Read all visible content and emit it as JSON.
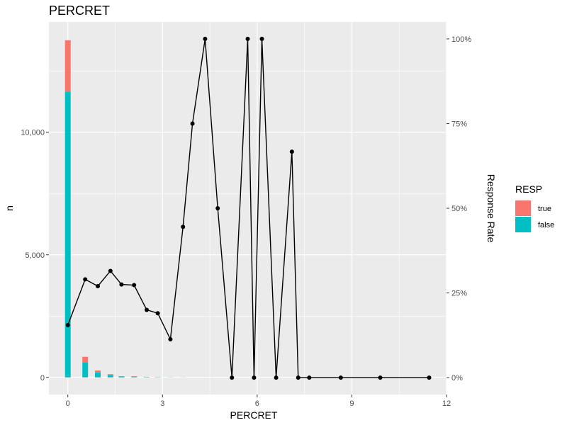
{
  "chart_data": {
    "type": "bar+line",
    "title": "PERCRET",
    "xlabel": "PERCRET",
    "ylabel": "n",
    "y2label": "Response Rate",
    "xlim": [
      -0.6,
      12.0
    ],
    "ylim": [
      -700,
      14500
    ],
    "y2lim": [
      -0.05,
      1.05
    ],
    "x_ticks": [
      0,
      3,
      6,
      9,
      12
    ],
    "x_tick_labels": [
      "0",
      "3",
      "6",
      "9",
      "12"
    ],
    "y_ticks": [
      0,
      5000,
      10000
    ],
    "y_tick_labels": [
      "0",
      "5,000",
      "10,000"
    ],
    "y2_ticks": [
      0,
      0.25,
      0.5,
      0.75,
      1.0
    ],
    "y2_tick_labels": [
      "0%",
      "25%",
      "50%",
      "75%",
      "100%"
    ],
    "grid": true,
    "legend": {
      "title": "RESP",
      "position": "right",
      "items": [
        {
          "label": "true",
          "color": "#F8766D"
        },
        {
          "label": "false",
          "color": "#00BFC4"
        }
      ]
    },
    "bar_width": 0.18,
    "bars": {
      "x": [
        0.0,
        0.55,
        0.95,
        1.35,
        1.7,
        2.1,
        2.5,
        2.85,
        3.25,
        3.65
      ],
      "false": [
        11650,
        600,
        200,
        100,
        40,
        20,
        15,
        8,
        5,
        3
      ],
      "true": [
        2100,
        240,
        80,
        30,
        10,
        30,
        5,
        4,
        2,
        2
      ]
    },
    "rate_line": {
      "name": "Response Rate",
      "x": [
        0.0,
        0.55,
        0.95,
        1.35,
        1.7,
        2.1,
        2.5,
        2.85,
        3.25,
        3.65,
        3.95,
        4.35,
        4.75,
        5.2,
        5.7,
        5.9,
        6.15,
        6.6,
        7.1,
        7.3,
        7.65,
        8.65,
        9.9,
        11.45
      ],
      "y": [
        0.155,
        0.29,
        0.27,
        0.315,
        0.275,
        0.273,
        0.2,
        0.19,
        0.113,
        0.445,
        0.75,
        1.0,
        0.5,
        0.0,
        1.0,
        0.0,
        1.0,
        0.0,
        0.667,
        0.0,
        0.0,
        0.0,
        0.0,
        0.0
      ]
    },
    "colors": {
      "panel": "#EBEBEB",
      "grid_major": "#FFFFFF",
      "line": "#000000"
    }
  }
}
